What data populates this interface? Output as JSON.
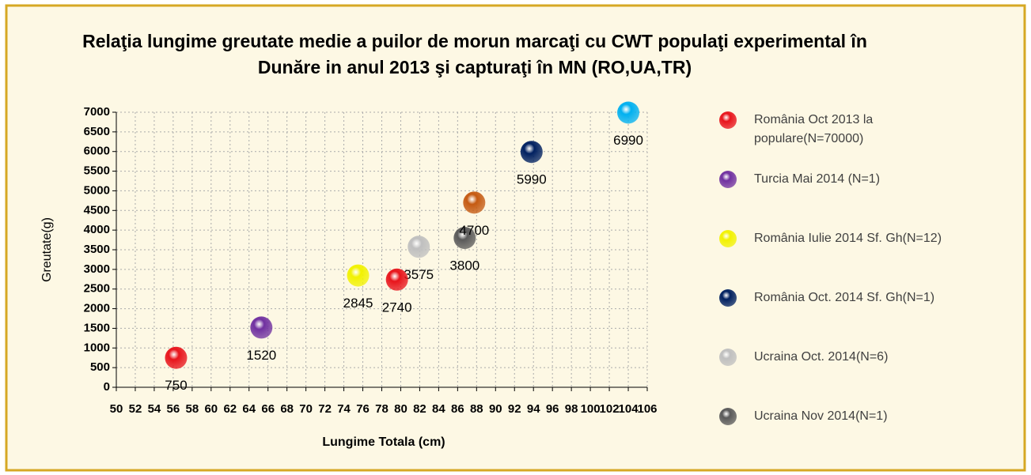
{
  "chart_data": {
    "type": "scatter",
    "title": "Relaţia lungime greutate medie a puilor de morun marcaţi cu CWT populaţi experimental în Dunăre in anul 2013 şi capturaţi în MN (RO,UA,TR)",
    "xlabel": "Lungime Totala (cm)",
    "ylabel": "Greutate(g)",
    "xlim": [
      50,
      106
    ],
    "xticks": [
      50,
      52,
      54,
      56,
      58,
      60,
      62,
      64,
      66,
      68,
      70,
      72,
      74,
      76,
      78,
      80,
      82,
      84,
      86,
      88,
      90,
      92,
      94,
      96,
      98,
      100,
      102,
      104,
      106
    ],
    "ylim": [
      0,
      7000
    ],
    "yticks": [
      0,
      500,
      1000,
      1500,
      2000,
      2500,
      3000,
      3500,
      4000,
      4500,
      5000,
      5500,
      6000,
      6500,
      7000
    ],
    "grid": true,
    "legend": "right",
    "series": [
      {
        "name": "România Oct 2013 la populare(N=70000)",
        "color": "#e8141b",
        "x": [
          56.3
        ],
        "values": [
          750
        ]
      },
      {
        "name": "Turcia Mai 2014 (N=1)",
        "color": "#7030a0",
        "x": [
          65.3
        ],
        "values": [
          1520
        ]
      },
      {
        "name": "România Iulie 2014 Sf. Gh(N=12)",
        "color": "#f2f200",
        "x": [
          75.5
        ],
        "values": [
          2845
        ]
      },
      {
        "name": "România Oct. 2014 Sf. Gh(N=1)",
        "color": "#002060",
        "x": [
          93.8
        ],
        "values": [
          5990
        ]
      },
      {
        "name": "Ucraina Oct. 2014(N=6)",
        "color": "#bfbfbf",
        "x": [
          81.9
        ],
        "values": [
          3575
        ]
      },
      {
        "name": "Ucraina Nov 2014(N=1)",
        "color": "#595959",
        "x": [
          86.75
        ],
        "values": [
          3800
        ]
      },
      {
        "color": "#e8141b",
        "x": [
          79.6
        ],
        "values": [
          2740
        ]
      },
      {
        "color": "#c55a11",
        "x": [
          87.75
        ],
        "values": [
          4700
        ]
      },
      {
        "color": "#00b0f0",
        "x": [
          104
        ],
        "values": [
          6990
        ]
      }
    ]
  }
}
